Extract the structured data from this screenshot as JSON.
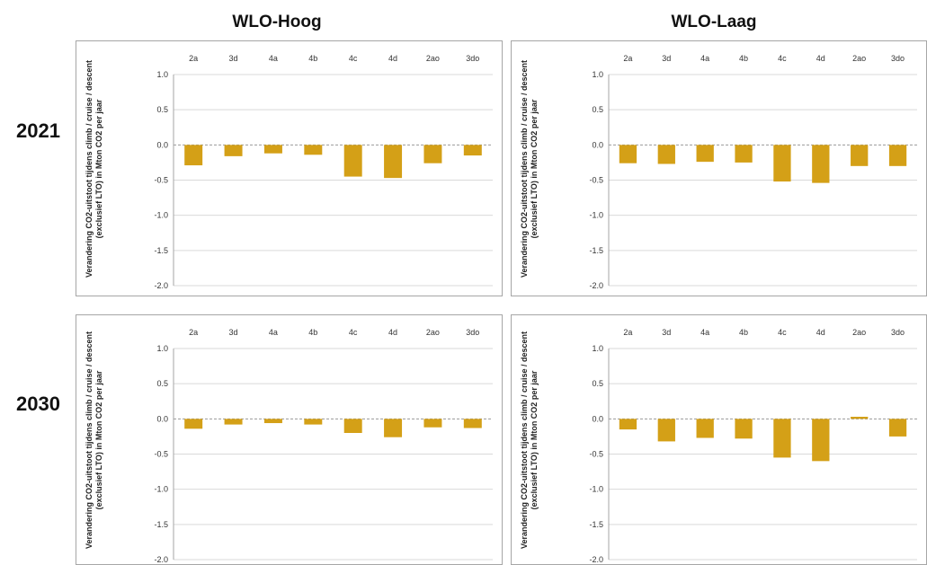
{
  "headers": {
    "col1": "WLO-Hoog",
    "col2": "WLO-Laag",
    "row1": "2021",
    "row2": "2030"
  },
  "colors": {
    "bar": "#D4A017",
    "grid": "#d9d9d9",
    "axis": "#a6a6a6"
  },
  "chart_data": [
    {
      "type": "bar",
      "scenario": "WLO-Hoog",
      "year": "2021",
      "categories": [
        "2a",
        "3d",
        "4a",
        "4b",
        "4c",
        "4d",
        "2ao",
        "3do"
      ],
      "values": [
        -0.29,
        -0.16,
        -0.12,
        -0.14,
        -0.45,
        -0.47,
        -0.26,
        -0.15
      ],
      "ylabel": "Verandering CO2-uitstoot tijdens climb / cruise / descent (exclusief LTO) in Mton CO2 per jaar",
      "yticks": [
        "1.0",
        "0.5",
        "0.0",
        "-0.5",
        "-1.0",
        "-1.5",
        "-2.0"
      ],
      "ylim": [
        -2.0,
        1.0
      ],
      "grid": true
    },
    {
      "type": "bar",
      "scenario": "WLO-Laag",
      "year": "2021",
      "categories": [
        "2a",
        "3d",
        "4a",
        "4b",
        "4c",
        "4d",
        "2ao",
        "3do"
      ],
      "values": [
        -0.26,
        -0.27,
        -0.24,
        -0.25,
        -0.52,
        -0.54,
        -0.3,
        -0.3
      ],
      "ylabel": "Verandering CO2-uitstoot tijdens climb / cruise / descent (exclusief LTO) in Mton CO2 per jaar",
      "yticks": [
        "1.0",
        "0.5",
        "0.0",
        "-0.5",
        "-1.0",
        "-1.5",
        "-2.0"
      ],
      "ylim": [
        -2.0,
        1.0
      ],
      "grid": true
    },
    {
      "type": "bar",
      "scenario": "WLO-Hoog",
      "year": "2030",
      "categories": [
        "2a",
        "3d",
        "4a",
        "4b",
        "4c",
        "4d",
        "2ao",
        "3do"
      ],
      "values": [
        -0.14,
        -0.08,
        -0.06,
        -0.08,
        -0.2,
        -0.26,
        -0.12,
        -0.13
      ],
      "ylabel": "Verandering CO2-uitstoot tijdens climb / cruise / descent (exclusief LTO) in Mton CO2 per jaar",
      "yticks": [
        "1.0",
        "0.5",
        "0.0",
        "-0.5",
        "-1.0",
        "-1.5",
        "-2.0"
      ],
      "ylim": [
        -2.0,
        1.0
      ],
      "grid": true
    },
    {
      "type": "bar",
      "scenario": "WLO-Laag",
      "year": "2030",
      "categories": [
        "2a",
        "3d",
        "4a",
        "4b",
        "4c",
        "4d",
        "2ao",
        "3do"
      ],
      "values": [
        -0.15,
        -0.32,
        -0.27,
        -0.28,
        -0.55,
        -0.6,
        0.03,
        -0.25
      ],
      "ylabel": "Verandering CO2-uitstoot tijdens climb / cruise / descent (exclusief LTO) in Mton CO2 per jaar",
      "yticks": [
        "1.0",
        "0.5",
        "0.0",
        "-0.5",
        "-1.0",
        "-1.5",
        "-2.0"
      ],
      "ylim": [
        -2.0,
        1.0
      ],
      "grid": true
    }
  ]
}
